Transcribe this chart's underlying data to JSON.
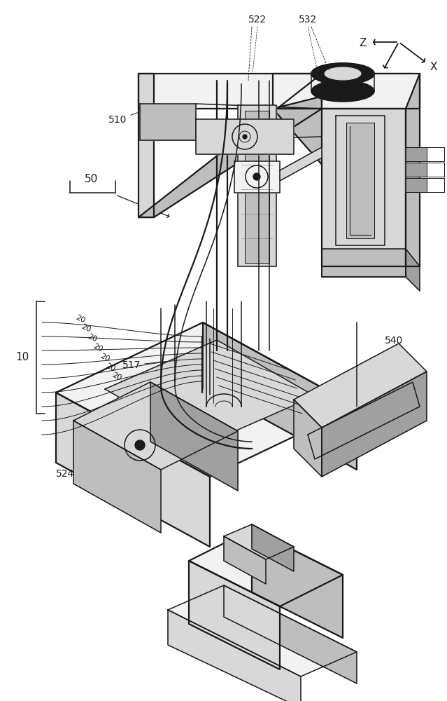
{
  "bg_color": "#ffffff",
  "fig_width": 6.39,
  "fig_height": 10.0,
  "dpi": 100,
  "lw_thick": 1.6,
  "lw_main": 1.1,
  "lw_thin": 0.7,
  "lw_hair": 0.5,
  "gray_light": "#f2f2f2",
  "gray_mid": "#d8d8d8",
  "gray_dark": "#bebebe",
  "gray_darker": "#a0a0a0"
}
